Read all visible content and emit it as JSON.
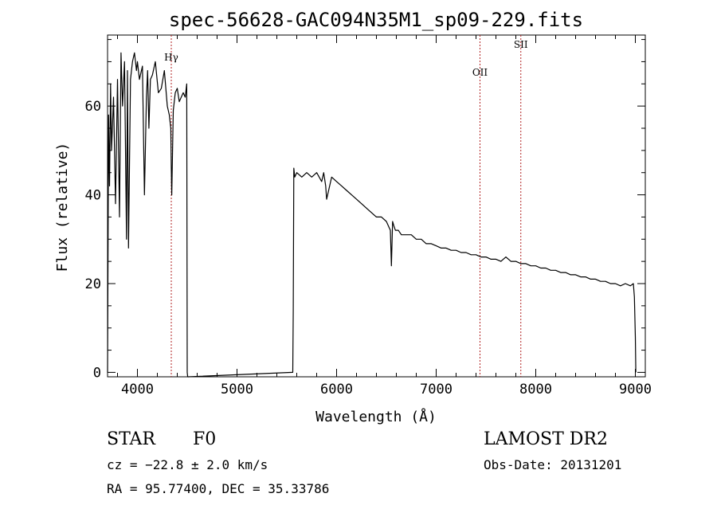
{
  "chart_data": {
    "type": "line",
    "title": "spec-56628-GAC094N35M1_sp09-229.fits",
    "xlabel": "Wavelength (Å)",
    "ylabel": "Flux (relative)",
    "xlim": [
      3700,
      9100
    ],
    "ylim": [
      -1,
      76
    ],
    "xticks": [
      4000,
      5000,
      6000,
      7000,
      8000,
      9000
    ],
    "yticks": [
      0,
      20,
      40,
      60
    ],
    "grid": false,
    "series": [
      {
        "x": [
          3700,
          3710,
          3720,
          3730,
          3740,
          3760,
          3780,
          3800,
          3820,
          3835,
          3850,
          3870,
          3890,
          3900,
          3910,
          3930,
          3950,
          3970,
          3990,
          4000,
          4020,
          4050,
          4070,
          4090,
          4102,
          4115,
          4130,
          4150,
          4180,
          4210,
          4240,
          4270,
          4300,
          4320,
          4335,
          4340,
          4345,
          4360,
          4380,
          4400,
          4420,
          4440,
          4460,
          4480,
          4495,
          4500,
          4505,
          4510,
          5560,
          5565,
          5570,
          5575,
          5580,
          5600,
          5650,
          5700,
          5750,
          5800,
          5850,
          5870,
          5890,
          5900,
          5950,
          6000,
          6050,
          6100,
          6150,
          6200,
          6250,
          6300,
          6350,
          6400,
          6450,
          6500,
          6540,
          6550,
          6562,
          6575,
          6590,
          6620,
          6650,
          6700,
          6750,
          6800,
          6850,
          6900,
          6950,
          7000,
          7050,
          7100,
          7150,
          7200,
          7250,
          7300,
          7350,
          7400,
          7450,
          7500,
          7550,
          7600,
          7650,
          7700,
          7750,
          7800,
          7850,
          7900,
          7950,
          8000,
          8050,
          8100,
          8150,
          8200,
          8250,
          8300,
          8350,
          8400,
          8450,
          8500,
          8550,
          8600,
          8650,
          8700,
          8750,
          8800,
          8850,
          8900,
          8950,
          8980,
          8990,
          9000,
          9005
        ],
        "y": [
          0,
          58,
          42,
          65,
          50,
          62,
          38,
          66,
          35,
          72,
          60,
          70,
          30,
          68,
          28,
          66,
          70,
          72,
          68,
          70,
          66,
          69,
          40,
          62,
          68,
          55,
          66,
          67,
          70,
          63,
          64,
          68,
          60,
          58,
          55,
          46,
          40,
          59,
          63,
          64,
          61,
          62,
          63,
          62,
          65,
          0,
          -1,
          -1,
          0,
          14,
          46,
          45,
          44,
          45,
          44,
          45,
          44,
          45,
          43,
          45,
          42,
          39,
          44,
          43,
          42,
          41,
          40,
          39,
          38,
          37,
          36,
          35,
          35,
          34,
          32,
          24,
          34,
          33,
          32,
          32,
          31,
          31,
          31,
          30,
          30,
          29,
          29,
          28.5,
          28,
          28,
          27.5,
          27.5,
          27,
          27,
          26.5,
          26.5,
          26,
          26,
          25.5,
          25.5,
          25,
          26,
          25,
          25,
          24.5,
          24.5,
          24,
          24,
          23.5,
          23.5,
          23,
          23,
          22.5,
          22.5,
          22,
          22,
          21.5,
          21.5,
          21,
          21,
          20.5,
          20.5,
          20,
          20,
          19.5,
          20,
          19.5,
          20,
          17,
          8,
          0
        ]
      }
    ],
    "lines": [
      {
        "label": "Hγ",
        "x": 4340
      },
      {
        "label": "OII",
        "x": 7440
      },
      {
        "label": "SII",
        "x": 7850
      }
    ]
  },
  "info": {
    "object_class": "STAR",
    "subclass": "F0",
    "survey": "LAMOST DR2",
    "cz": "cz = −22.8 ± 2.0 km/s",
    "obs_date": "Obs-Date: 20131201",
    "coords": "RA =  95.77400, DEC =  35.33786"
  }
}
